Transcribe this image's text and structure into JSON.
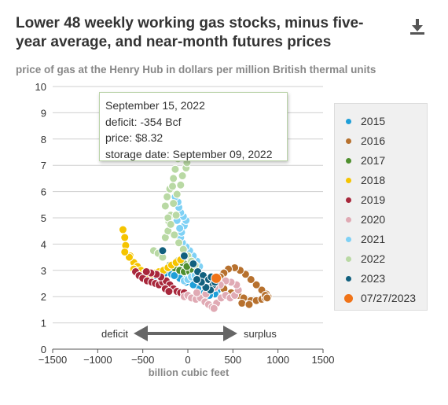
{
  "title": "Lower 48 weekly working gas stocks, minus five-year average, and near-month futures prices",
  "subtitle": "price of gas at the Henry Hub in dollars per million British thermal units",
  "download_icon": "download-icon",
  "tooltip": {
    "date": "September 15, 2022",
    "deficit": "deficit: -354 Bcf",
    "price": "price: $8.32",
    "storage": "storage date: September 09, 2022"
  },
  "annotation": {
    "deficit": "deficit",
    "surplus": "surplus"
  },
  "chart_data": {
    "type": "scatter",
    "title": "Lower 48 weekly working gas stocks, minus five-year average, and near-month futures prices",
    "xlabel": "billion cubic feet",
    "ylabel": "price of gas at the Henry Hub in dollars per million British thermal units",
    "xlim": [
      -1500,
      1500
    ],
    "ylim": [
      0,
      10
    ],
    "x_ticks": [
      -1500,
      -1000,
      -500,
      0,
      500,
      1000,
      1500
    ],
    "y_ticks": [
      0,
      1,
      2,
      3,
      4,
      5,
      6,
      7,
      8,
      9,
      10
    ],
    "grid": "horizontal",
    "legend_position": "right",
    "series": [
      {
        "name": "2015",
        "color": "#1f9fd8",
        "points": [
          [
            -360,
            2.7
          ],
          [
            -320,
            2.8
          ],
          [
            -250,
            2.9
          ],
          [
            -180,
            2.85
          ],
          [
            -100,
            2.75
          ],
          [
            -30,
            2.65
          ],
          [
            40,
            2.6
          ],
          [
            120,
            2.55
          ],
          [
            200,
            2.45
          ],
          [
            270,
            2.35
          ],
          [
            330,
            2.25
          ],
          [
            300,
            2.1
          ],
          [
            240,
            2.05
          ],
          [
            180,
            2.15
          ],
          [
            110,
            2.3
          ],
          [
            60,
            2.45
          ],
          [
            -20,
            2.55
          ],
          [
            -90,
            2.7
          ],
          [
            -150,
            2.8
          ]
        ]
      },
      {
        "name": "2016",
        "color": "#b7712e",
        "points": [
          [
            300,
            2.55
          ],
          [
            400,
            2.3
          ],
          [
            480,
            2.15
          ],
          [
            560,
            2.05
          ],
          [
            620,
            1.95
          ],
          [
            700,
            1.85
          ],
          [
            760,
            1.85
          ],
          [
            820,
            1.9
          ],
          [
            860,
            1.95
          ],
          [
            890,
            2.0
          ],
          [
            870,
            2.1
          ],
          [
            820,
            2.25
          ],
          [
            760,
            2.45
          ],
          [
            700,
            2.65
          ],
          [
            640,
            2.85
          ],
          [
            580,
            3.0
          ],
          [
            520,
            3.1
          ],
          [
            450,
            3.05
          ],
          [
            400,
            2.9
          ],
          [
            360,
            2.75
          ],
          [
            600,
            1.75
          ],
          [
            680,
            1.7
          ],
          [
            860,
            2.05
          ],
          [
            880,
            1.95
          ]
        ]
      },
      {
        "name": "2017",
        "color": "#4f8f2f",
        "points": [
          [
            -200,
            3.2
          ],
          [
            -150,
            3.1
          ],
          [
            -90,
            3.0
          ],
          [
            -40,
            2.95
          ],
          [
            20,
            2.95
          ],
          [
            60,
            3.0
          ],
          [
            10,
            3.25
          ],
          [
            -60,
            3.3
          ],
          [
            -120,
            3.35
          ],
          [
            -10,
            3.15
          ]
        ]
      },
      {
        "name": "2018",
        "color": "#f5c400",
        "points": [
          [
            -720,
            4.55
          ],
          [
            -700,
            4.25
          ],
          [
            -690,
            3.95
          ],
          [
            -640,
            3.55
          ],
          [
            -600,
            3.3
          ],
          [
            -560,
            3.15
          ],
          [
            -520,
            3.0
          ],
          [
            -480,
            2.9
          ],
          [
            -440,
            2.85
          ],
          [
            -400,
            2.85
          ],
          [
            -360,
            2.9
          ],
          [
            -320,
            2.95
          ],
          [
            -270,
            3.0
          ],
          [
            -220,
            3.1
          ],
          [
            -180,
            3.2
          ],
          [
            -130,
            3.3
          ],
          [
            -80,
            3.4
          ],
          [
            -600,
            3.05
          ],
          [
            -650,
            3.5
          ],
          [
            -700,
            3.7
          ]
        ]
      },
      {
        "name": "2019",
        "color": "#a8283c",
        "points": [
          [
            -580,
            2.95
          ],
          [
            -540,
            2.8
          ],
          [
            -500,
            2.7
          ],
          [
            -450,
            2.6
          ],
          [
            -400,
            2.55
          ],
          [
            -360,
            2.5
          ],
          [
            -320,
            2.45
          ],
          [
            -280,
            2.55
          ],
          [
            -240,
            2.6
          ],
          [
            -200,
            2.45
          ],
          [
            -160,
            2.3
          ],
          [
            -120,
            2.2
          ],
          [
            -80,
            2.15
          ],
          [
            -40,
            2.15
          ],
          [
            -300,
            2.75
          ],
          [
            -350,
            2.85
          ],
          [
            -410,
            2.9
          ],
          [
            -460,
            2.95
          ],
          [
            -250,
            2.3
          ],
          [
            -210,
            2.2
          ]
        ]
      },
      {
        "name": "2020",
        "color": "#e0aab4",
        "points": [
          [
            -40,
            2.0
          ],
          [
            0,
            2.05
          ],
          [
            40,
            1.95
          ],
          [
            90,
            1.9
          ],
          [
            140,
            1.95
          ],
          [
            190,
            1.8
          ],
          [
            230,
            1.7
          ],
          [
            270,
            1.6
          ],
          [
            320,
            1.75
          ],
          [
            370,
            1.95
          ],
          [
            420,
            2.05
          ],
          [
            470,
            1.95
          ],
          [
            520,
            2.05
          ],
          [
            560,
            2.25
          ],
          [
            540,
            2.45
          ],
          [
            480,
            2.55
          ],
          [
            420,
            2.6
          ],
          [
            360,
            2.45
          ],
          [
            300,
            2.35
          ],
          [
            250,
            2.25
          ],
          [
            200,
            2.1
          ],
          [
            100,
            2.15
          ],
          [
            290,
            1.55
          ]
        ]
      },
      {
        "name": "2021",
        "color": "#7fd1f5",
        "points": [
          [
            -40,
            2.6
          ],
          [
            0,
            2.65
          ],
          [
            40,
            2.75
          ],
          [
            80,
            2.8
          ],
          [
            110,
            2.95
          ],
          [
            130,
            3.15
          ],
          [
            100,
            3.35
          ],
          [
            60,
            3.55
          ],
          [
            20,
            3.75
          ],
          [
            -20,
            3.9
          ],
          [
            -60,
            4.05
          ],
          [
            -80,
            4.25
          ],
          [
            -70,
            4.45
          ],
          [
            -40,
            4.7
          ],
          [
            -20,
            4.9
          ],
          [
            -50,
            5.05
          ],
          [
            -80,
            5.2
          ],
          [
            -100,
            5.4
          ],
          [
            -110,
            5.6
          ],
          [
            -140,
            5.8
          ],
          [
            -120,
            4.9
          ],
          [
            -90,
            4.6
          ]
        ]
      },
      {
        "name": "2022",
        "color": "#b9d9a4",
        "points": [
          [
            -380,
            3.75
          ],
          [
            -330,
            3.65
          ],
          [
            -280,
            3.5
          ],
          [
            -250,
            4.25
          ],
          [
            -220,
            4.5
          ],
          [
            -210,
            4.85
          ],
          [
            -190,
            5.1
          ],
          [
            -160,
            5.55
          ],
          [
            -120,
            5.9
          ],
          [
            -80,
            6.25
          ],
          [
            -60,
            6.6
          ],
          [
            -20,
            6.9
          ],
          [
            -10,
            7.1
          ],
          [
            -40,
            7.4
          ],
          [
            -60,
            7.7
          ],
          [
            -80,
            8.0
          ],
          [
            -110,
            7.25
          ],
          [
            -140,
            6.85
          ],
          [
            -160,
            6.5
          ],
          [
            -200,
            6.1
          ],
          [
            -230,
            5.8
          ],
          [
            -250,
            5.45
          ],
          [
            -220,
            5.0
          ],
          [
            -190,
            4.75
          ],
          [
            -150,
            4.35
          ],
          [
            -100,
            4.05
          ],
          [
            -50,
            3.8
          ],
          [
            0,
            3.55
          ],
          [
            40,
            3.35
          ],
          [
            80,
            3.2
          ],
          [
            -354,
            8.32
          ],
          [
            -130,
            5.1
          ],
          [
            -170,
            6.2
          ]
        ]
      },
      {
        "name": "2023",
        "color": "#11607e",
        "points": [
          [
            -280,
            3.75
          ],
          [
            -40,
            3.55
          ],
          [
            60,
            3.25
          ],
          [
            110,
            2.95
          ],
          [
            170,
            2.8
          ],
          [
            230,
            2.65
          ],
          [
            280,
            2.45
          ],
          [
            250,
            2.25
          ],
          [
            200,
            2.35
          ],
          [
            150,
            2.55
          ],
          [
            100,
            2.65
          ],
          [
            300,
            2.55
          ],
          [
            260,
            2.75
          ]
        ]
      },
      {
        "name": "07/27/2023",
        "color": "#f07318",
        "points": [
          [
            315,
            2.7
          ]
        ]
      }
    ]
  }
}
